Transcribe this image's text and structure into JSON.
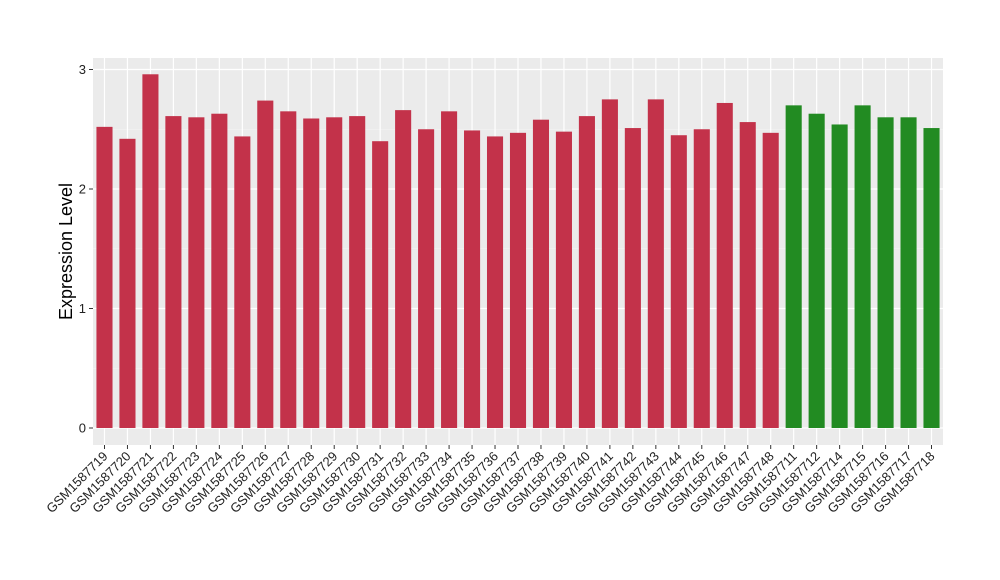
{
  "chart_data": {
    "type": "bar",
    "ylabel": "Expression Level",
    "xlabel": "",
    "ylim": [
      0,
      3.1
    ],
    "yticks": [
      0,
      1,
      2,
      3
    ],
    "grid": true,
    "panel_background": "#ebebeb",
    "colors": {
      "group_a": "#c3324a",
      "group_b": "#228b22"
    },
    "categories": [
      "GSM1587719",
      "GSM1587720",
      "GSM1587721",
      "GSM1587722",
      "GSM1587723",
      "GSM1587724",
      "GSM1587725",
      "GSM1587726",
      "GSM1587727",
      "GSM1587728",
      "GSM1587729",
      "GSM1587730",
      "GSM1587731",
      "GSM1587732",
      "GSM1587733",
      "GSM1587734",
      "GSM1587735",
      "GSM1587736",
      "GSM1587737",
      "GSM1587738",
      "GSM1587739",
      "GSM1587740",
      "GSM1587741",
      "GSM1587742",
      "GSM1587743",
      "GSM1587744",
      "GSM1587745",
      "GSM1587746",
      "GSM1587747",
      "GSM1587748",
      "GSM1587711",
      "GSM1587712",
      "GSM1587714",
      "GSM1587715",
      "GSM1587716",
      "GSM1587717",
      "GSM1587718"
    ],
    "values": [
      2.52,
      2.42,
      2.96,
      2.61,
      2.6,
      2.63,
      2.44,
      2.74,
      2.65,
      2.59,
      2.6,
      2.61,
      2.4,
      2.66,
      2.5,
      2.65,
      2.49,
      2.44,
      2.47,
      2.58,
      2.48,
      2.61,
      2.75,
      2.51,
      2.75,
      2.45,
      2.5,
      2.72,
      2.56,
      2.47,
      2.7,
      2.63,
      2.54,
      2.7,
      2.6,
      2.6,
      2.51
    ],
    "groups": [
      "a",
      "a",
      "a",
      "a",
      "a",
      "a",
      "a",
      "a",
      "a",
      "a",
      "a",
      "a",
      "a",
      "a",
      "a",
      "a",
      "a",
      "a",
      "a",
      "a",
      "a",
      "a",
      "a",
      "a",
      "a",
      "a",
      "a",
      "a",
      "a",
      "a",
      "b",
      "b",
      "b",
      "b",
      "b",
      "b",
      "b"
    ]
  }
}
